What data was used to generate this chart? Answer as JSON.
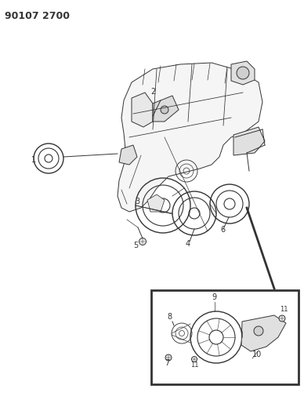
{
  "title": "90107 2700",
  "title_fontsize": 9,
  "bg_color": "#ffffff",
  "fig_width": 3.88,
  "fig_height": 5.33,
  "dpi": 100,
  "line_color": "#333333",
  "label_fontsize": 7
}
